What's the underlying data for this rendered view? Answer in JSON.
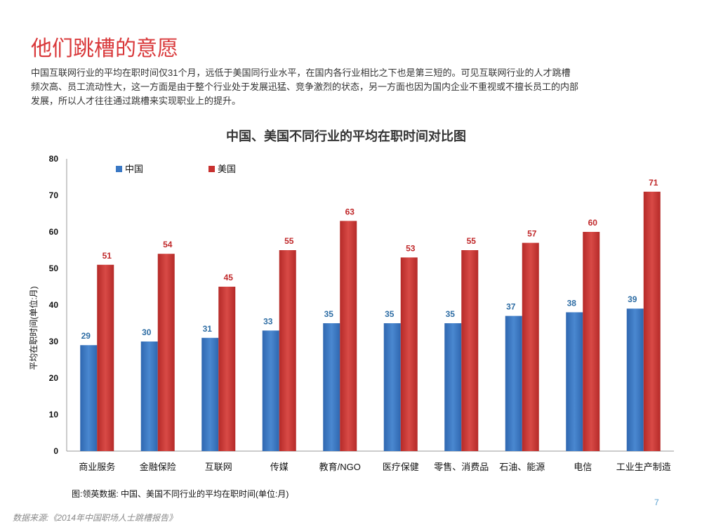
{
  "slide": {
    "title": "他们跳槽的意愿",
    "intro": "中国互联网行业的平均在职时间仅31个月，远低于美国同行业水平，在国内各行业相比之下也是第三短的。可见互联网行业的人才跳槽频次高、员工流动性大，这一方面是由于整个行业处于发展迅猛、竞争激烈的状态，另一方面也因为国内企业不重视或不擅长员工的内部发展，所以人才往往通过跳槽来实现职业上的提升。",
    "caption": "图:领英数据: 中国、美国不同行业的平均在职时间(单位:月)",
    "page_number": "7",
    "source": "数据来源:《2014年中国职场人士跳槽报告》"
  },
  "chart_data": {
    "type": "bar",
    "title": "中国、美国不同行业的平均在职时间对比图",
    "xlabel": "",
    "ylabel": "平均在职时间(单位:月)",
    "ylim": [
      0,
      80
    ],
    "yticks": [
      0,
      10,
      20,
      30,
      40,
      50,
      60,
      70,
      80
    ],
    "grid": false,
    "legend_position": "top-left",
    "categories": [
      "商业服务",
      "金融保险",
      "互联网",
      "传媒",
      "教育/NGO",
      "医疗保健",
      "零售、消费品",
      "石油、能源",
      "电信",
      "工业生产制造"
    ],
    "series": [
      {
        "name": "中国",
        "color": "#3a78c4",
        "label_color": "#2e6da4",
        "values": [
          29,
          30,
          31,
          33,
          35,
          35,
          35,
          37,
          38,
          39
        ]
      },
      {
        "name": "美国",
        "color": "#c8312f",
        "label_color": "#c0282a",
        "values": [
          51,
          54,
          45,
          55,
          63,
          53,
          55,
          57,
          60,
          71
        ]
      }
    ]
  }
}
